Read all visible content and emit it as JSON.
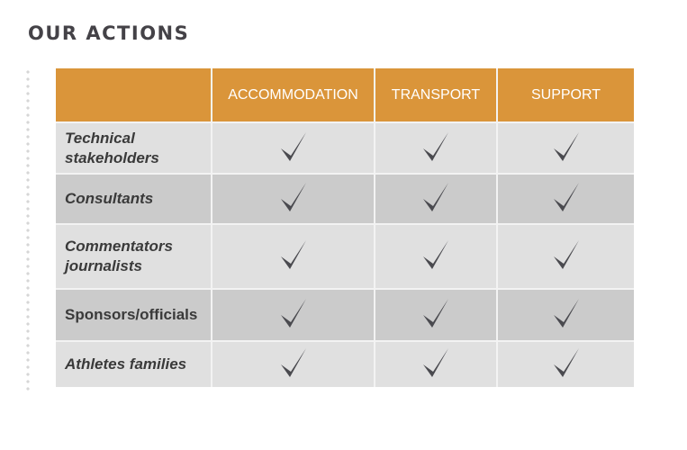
{
  "title": "OUR ACTIONS",
  "columns": [
    "",
    "ACCOMMODATION",
    "TRANSPORT",
    "SUPPORT"
  ],
  "rows": [
    {
      "label": "Technical stakeholders",
      "italic": true,
      "checks": [
        true,
        true,
        true
      ]
    },
    {
      "label": "Consultants",
      "italic": true,
      "checks": [
        true,
        true,
        true
      ]
    },
    {
      "label": "Commentators journalists",
      "italic": true,
      "checks": [
        true,
        true,
        true
      ]
    },
    {
      "label": "Sponsors/officials",
      "italic": false,
      "checks": [
        true,
        true,
        true
      ]
    },
    {
      "label": "Athletes families",
      "italic": true,
      "checks": [
        true,
        true,
        true
      ]
    }
  ],
  "colors": {
    "header": "#da953a",
    "row_light": "#e0e0e0",
    "row_dark": "#cbcbcb",
    "check": "#4a4a4f"
  }
}
